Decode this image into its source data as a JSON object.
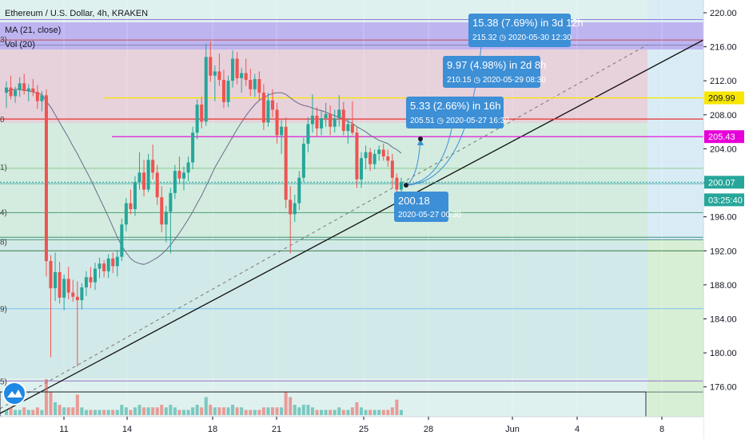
{
  "header": {
    "symbol_line": "Ethereum / U.S. Dollar, 4h, KRAKEN",
    "ma_label": "MA (21, close)",
    "vol_label": "Vol (20)"
  },
  "fib_left_labels": [
    "3)",
    "0",
    "1)",
    "4)",
    "8)",
    "9)",
    "5)"
  ],
  "colors": {
    "up": "#26a69a",
    "down": "#ef5350",
    "measure": "#3d8fd6",
    "yellow_line": "#f7e600",
    "magenta_line": "#e600d8",
    "red_line": "#e53935",
    "ma_line": "#6b6b8a"
  },
  "chart_data": {
    "type": "candlestick",
    "title": "Ethereum / U.S. Dollar, 4h, KRAKEN",
    "indicators": [
      "MA (21, close)",
      "Vol (20)"
    ],
    "ylim": [
      172.5,
      221.5
    ],
    "y_ticks": [
      "220.00",
      "216.00",
      "212.00",
      "208.00",
      "204.00",
      "200.00",
      "196.00",
      "192.00",
      "188.00",
      "184.00",
      "180.00",
      "176.00"
    ],
    "x_ticks": [
      "11",
      "14",
      "18",
      "21",
      "25",
      "28",
      "Jun",
      "4",
      "8"
    ],
    "price_tags": [
      {
        "label": "209.99",
        "value": 209.99,
        "color": "#f7e600",
        "text_color": "#131722"
      },
      {
        "label": "205.43",
        "value": 205.43,
        "color": "#e600d8",
        "text_color": "#ffffff"
      },
      {
        "label": "200.07",
        "value": 200.07,
        "color": "#26a69a",
        "text_color": "#ffffff"
      },
      {
        "label": "03:25:40",
        "value": 198.0,
        "color": "#26a69a",
        "text_color": "#ffffff"
      }
    ],
    "horizontal_levels": [
      {
        "name": "yellow",
        "value": 209.99
      },
      {
        "name": "magenta",
        "value": 205.43
      },
      {
        "name": "red",
        "value": 207.5
      }
    ],
    "fib_levels": [
      219.2,
      216.8,
      216.2,
      207.5,
      201.7,
      199.9,
      196.5,
      193.6,
      193.3,
      192.0,
      185.2,
      176.7,
      175.4
    ],
    "measurements": [
      {
        "line1": "15.38 (7.69%) in 3d 12h",
        "line2": "215.32 ◷ 2020-05-30  12:30",
        "target": 215.32
      },
      {
        "line1": "9.97 (4.98%) in 2d 8h",
        "line2": "210.15 ◷ 2020-05-29  08:30",
        "target": 210.15
      },
      {
        "line1": "5.33 (2.66%) in 16h",
        "line2": "205.51 ◷ 2020-05-27  16:30",
        "target": 205.51
      },
      {
        "line1": "200.18",
        "line2": "2020-05-27 00:30",
        "target": 200.18
      }
    ],
    "candles": [
      {
        "o": 210.6,
        "h": 211.9,
        "l": 208.8,
        "c": 211.2
      },
      {
        "o": 211.2,
        "h": 212.6,
        "l": 209.8,
        "c": 210.2
      },
      {
        "o": 210.2,
        "h": 211.3,
        "l": 209.4,
        "c": 210.9
      },
      {
        "o": 210.9,
        "h": 212.4,
        "l": 210.1,
        "c": 211.7
      },
      {
        "o": 211.7,
        "h": 212.8,
        "l": 210.4,
        "c": 210.8
      },
      {
        "o": 210.8,
        "h": 211.6,
        "l": 209.6,
        "c": 211.1
      },
      {
        "o": 211.1,
        "h": 212.2,
        "l": 210.2,
        "c": 210.7
      },
      {
        "o": 210.7,
        "h": 211.5,
        "l": 208.7,
        "c": 209.6
      },
      {
        "o": 209.6,
        "h": 210.8,
        "l": 208.4,
        "c": 210.3
      },
      {
        "o": 210.3,
        "h": 211.0,
        "l": 189.0,
        "c": 190.8
      },
      {
        "o": 190.8,
        "h": 191.5,
        "l": 179.5,
        "c": 187.6
      },
      {
        "o": 187.6,
        "h": 191.8,
        "l": 186.1,
        "c": 189.5
      },
      {
        "o": 189.5,
        "h": 190.7,
        "l": 185.8,
        "c": 186.5
      },
      {
        "o": 186.5,
        "h": 189.2,
        "l": 185.0,
        "c": 188.7
      },
      {
        "o": 188.7,
        "h": 190.1,
        "l": 186.3,
        "c": 187.1
      },
      {
        "o": 187.1,
        "h": 188.6,
        "l": 186.0,
        "c": 186.6
      },
      {
        "o": 186.6,
        "h": 188.4,
        "l": 178.4,
        "c": 186.2
      },
      {
        "o": 186.2,
        "h": 188.2,
        "l": 185.1,
        "c": 187.7
      },
      {
        "o": 187.7,
        "h": 189.6,
        "l": 186.7,
        "c": 188.9
      },
      {
        "o": 188.9,
        "h": 190.1,
        "l": 187.6,
        "c": 188.3
      },
      {
        "o": 188.3,
        "h": 190.6,
        "l": 187.4,
        "c": 189.9
      },
      {
        "o": 189.9,
        "h": 191.2,
        "l": 188.8,
        "c": 190.5
      },
      {
        "o": 190.5,
        "h": 190.9,
        "l": 188.9,
        "c": 189.6
      },
      {
        "o": 189.6,
        "h": 191.6,
        "l": 188.8,
        "c": 191.1
      },
      {
        "o": 191.1,
        "h": 191.8,
        "l": 189.4,
        "c": 190.2
      },
      {
        "o": 190.2,
        "h": 192.1,
        "l": 189.0,
        "c": 191.3
      },
      {
        "o": 191.3,
        "h": 195.8,
        "l": 190.8,
        "c": 195.1
      },
      {
        "o": 195.1,
        "h": 198.2,
        "l": 194.3,
        "c": 197.6
      },
      {
        "o": 197.6,
        "h": 199.2,
        "l": 196.3,
        "c": 196.9
      },
      {
        "o": 196.9,
        "h": 200.8,
        "l": 196.1,
        "c": 200.1
      },
      {
        "o": 200.1,
        "h": 203.6,
        "l": 199.2,
        "c": 201.2
      },
      {
        "o": 201.2,
        "h": 202.7,
        "l": 198.4,
        "c": 199.2
      },
      {
        "o": 199.2,
        "h": 203.4,
        "l": 198.9,
        "c": 202.7
      },
      {
        "o": 202.7,
        "h": 204.5,
        "l": 200.4,
        "c": 201.2
      },
      {
        "o": 201.2,
        "h": 202.1,
        "l": 197.4,
        "c": 198.3
      },
      {
        "o": 198.3,
        "h": 199.6,
        "l": 194.2,
        "c": 195.1
      },
      {
        "o": 195.1,
        "h": 197.3,
        "l": 193.0,
        "c": 196.6
      },
      {
        "o": 196.6,
        "h": 199.4,
        "l": 191.7,
        "c": 198.8
      },
      {
        "o": 198.8,
        "h": 202.1,
        "l": 198.1,
        "c": 201.4
      },
      {
        "o": 201.4,
        "h": 203.1,
        "l": 199.9,
        "c": 200.5
      },
      {
        "o": 200.5,
        "h": 201.9,
        "l": 199.1,
        "c": 201.2
      },
      {
        "o": 201.2,
        "h": 203.1,
        "l": 200.2,
        "c": 202.4
      },
      {
        "o": 202.4,
        "h": 206.6,
        "l": 201.6,
        "c": 205.9
      },
      {
        "o": 205.9,
        "h": 209.8,
        "l": 205.1,
        "c": 209.2
      },
      {
        "o": 209.2,
        "h": 210.1,
        "l": 206.4,
        "c": 207.2
      },
      {
        "o": 207.2,
        "h": 216.4,
        "l": 206.7,
        "c": 214.8
      },
      {
        "o": 214.8,
        "h": 216.6,
        "l": 211.9,
        "c": 212.6
      },
      {
        "o": 212.6,
        "h": 213.8,
        "l": 209.6,
        "c": 213.1
      },
      {
        "o": 213.1,
        "h": 215.2,
        "l": 211.4,
        "c": 212.1
      },
      {
        "o": 212.1,
        "h": 213.3,
        "l": 208.8,
        "c": 209.5
      },
      {
        "o": 209.5,
        "h": 212.6,
        "l": 208.9,
        "c": 212.0
      },
      {
        "o": 212.0,
        "h": 215.6,
        "l": 211.2,
        "c": 214.6
      },
      {
        "o": 214.6,
        "h": 215.4,
        "l": 211.6,
        "c": 212.3
      },
      {
        "o": 212.3,
        "h": 213.5,
        "l": 210.6,
        "c": 212.9
      },
      {
        "o": 212.9,
        "h": 214.6,
        "l": 211.4,
        "c": 212.1
      },
      {
        "o": 212.1,
        "h": 213.4,
        "l": 210.2,
        "c": 211.0
      },
      {
        "o": 211.0,
        "h": 212.8,
        "l": 210.1,
        "c": 212.2
      },
      {
        "o": 212.2,
        "h": 213.1,
        "l": 209.6,
        "c": 210.6
      },
      {
        "o": 210.6,
        "h": 211.6,
        "l": 206.2,
        "c": 207.1
      },
      {
        "o": 207.1,
        "h": 210.6,
        "l": 206.6,
        "c": 209.7
      },
      {
        "o": 209.7,
        "h": 211.0,
        "l": 207.7,
        "c": 208.6
      },
      {
        "o": 208.6,
        "h": 209.4,
        "l": 204.6,
        "c": 205.6
      },
      {
        "o": 205.6,
        "h": 207.4,
        "l": 203.4,
        "c": 206.6
      },
      {
        "o": 206.6,
        "h": 207.7,
        "l": 197.0,
        "c": 198.0
      },
      {
        "o": 198.0,
        "h": 199.6,
        "l": 191.7,
        "c": 196.3
      },
      {
        "o": 196.3,
        "h": 198.6,
        "l": 195.4,
        "c": 197.6
      },
      {
        "o": 197.6,
        "h": 201.4,
        "l": 196.8,
        "c": 200.6
      },
      {
        "o": 200.6,
        "h": 205.3,
        "l": 200.1,
        "c": 204.6
      },
      {
        "o": 204.6,
        "h": 207.7,
        "l": 203.6,
        "c": 206.9
      },
      {
        "o": 206.9,
        "h": 210.4,
        "l": 205.9,
        "c": 207.9
      },
      {
        "o": 207.9,
        "h": 208.9,
        "l": 205.4,
        "c": 206.4
      },
      {
        "o": 206.4,
        "h": 208.5,
        "l": 205.6,
        "c": 207.6
      },
      {
        "o": 207.6,
        "h": 209.4,
        "l": 206.6,
        "c": 208.1
      },
      {
        "o": 208.1,
        "h": 209.1,
        "l": 205.6,
        "c": 206.6
      },
      {
        "o": 206.6,
        "h": 208.6,
        "l": 205.9,
        "c": 207.6
      },
      {
        "o": 207.6,
        "h": 210.3,
        "l": 206.6,
        "c": 208.6
      },
      {
        "o": 208.6,
        "h": 209.5,
        "l": 205.6,
        "c": 206.1
      },
      {
        "o": 206.1,
        "h": 207.6,
        "l": 204.6,
        "c": 206.9
      },
      {
        "o": 206.9,
        "h": 209.6,
        "l": 205.6,
        "c": 205.9
      },
      {
        "o": 205.9,
        "h": 206.6,
        "l": 199.4,
        "c": 200.4
      },
      {
        "o": 200.4,
        "h": 203.6,
        "l": 199.4,
        "c": 202.9
      },
      {
        "o": 202.9,
        "h": 204.4,
        "l": 201.6,
        "c": 203.6
      },
      {
        "o": 203.6,
        "h": 204.1,
        "l": 201.4,
        "c": 202.2
      },
      {
        "o": 202.2,
        "h": 203.9,
        "l": 201.6,
        "c": 203.4
      },
      {
        "o": 203.4,
        "h": 204.4,
        "l": 202.6,
        "c": 203.9
      },
      {
        "o": 203.9,
        "h": 204.6,
        "l": 202.6,
        "c": 203.1
      },
      {
        "o": 203.1,
        "h": 203.9,
        "l": 201.9,
        "c": 202.6
      },
      {
        "o": 202.6,
        "h": 203.4,
        "l": 199.4,
        "c": 200.6
      },
      {
        "o": 200.6,
        "h": 201.1,
        "l": 197.9,
        "c": 199.2
      },
      {
        "o": 199.2,
        "h": 200.6,
        "l": 198.9,
        "c": 200.07
      }
    ],
    "ma": [
      210.8,
      210.9,
      211.0,
      211.0,
      210.9,
      210.8,
      210.7,
      210.5,
      210.4,
      209.6,
      208.9,
      208.0,
      207.1,
      206.2,
      205.3,
      204.3,
      203.4,
      202.4,
      201.4,
      200.4,
      199.3,
      198.2,
      197.1,
      196.0,
      194.8,
      193.6,
      192.6,
      191.8,
      191.1,
      190.7,
      190.5,
      190.4,
      190.6,
      190.9,
      191.2,
      191.6,
      192.1,
      192.7,
      193.4,
      194.1,
      194.9,
      195.7,
      196.6,
      197.6,
      198.5,
      199.6,
      200.7,
      201.8,
      202.7,
      203.6,
      204.5,
      205.4,
      206.3,
      207.1,
      207.9,
      208.6,
      209.2,
      209.7,
      210.0,
      210.3,
      210.5,
      210.6,
      210.6,
      210.4,
      210.0,
      209.6,
      209.3,
      209.1,
      209.0,
      208.8,
      208.6,
      208.5,
      208.3,
      208.1,
      207.9,
      207.7,
      207.5,
      207.2,
      207.0,
      206.6,
      206.3,
      206.0,
      205.6,
      205.3,
      205.0,
      204.8,
      204.6,
      204.2,
      203.9,
      203.5
    ],
    "volume": [
      2,
      3,
      2,
      2,
      3,
      2,
      2,
      3,
      2,
      14,
      9,
      5,
      4,
      3,
      3,
      3,
      8,
      3,
      2,
      2,
      2,
      2,
      2,
      2,
      2,
      2,
      4,
      3,
      2,
      3,
      4,
      3,
      3,
      3,
      3,
      4,
      3,
      4,
      3,
      2,
      2,
      2,
      3,
      4,
      3,
      7,
      4,
      3,
      3,
      3,
      3,
      4,
      3,
      3,
      2,
      2,
      2,
      2,
      3,
      3,
      3,
      3,
      3,
      9,
      7,
      4,
      3,
      4,
      4,
      3,
      2,
      2,
      2,
      2,
      2,
      3,
      2,
      2,
      3,
      5,
      3,
      2,
      2,
      2,
      2,
      2,
      2,
      3,
      6,
      2
    ]
  }
}
